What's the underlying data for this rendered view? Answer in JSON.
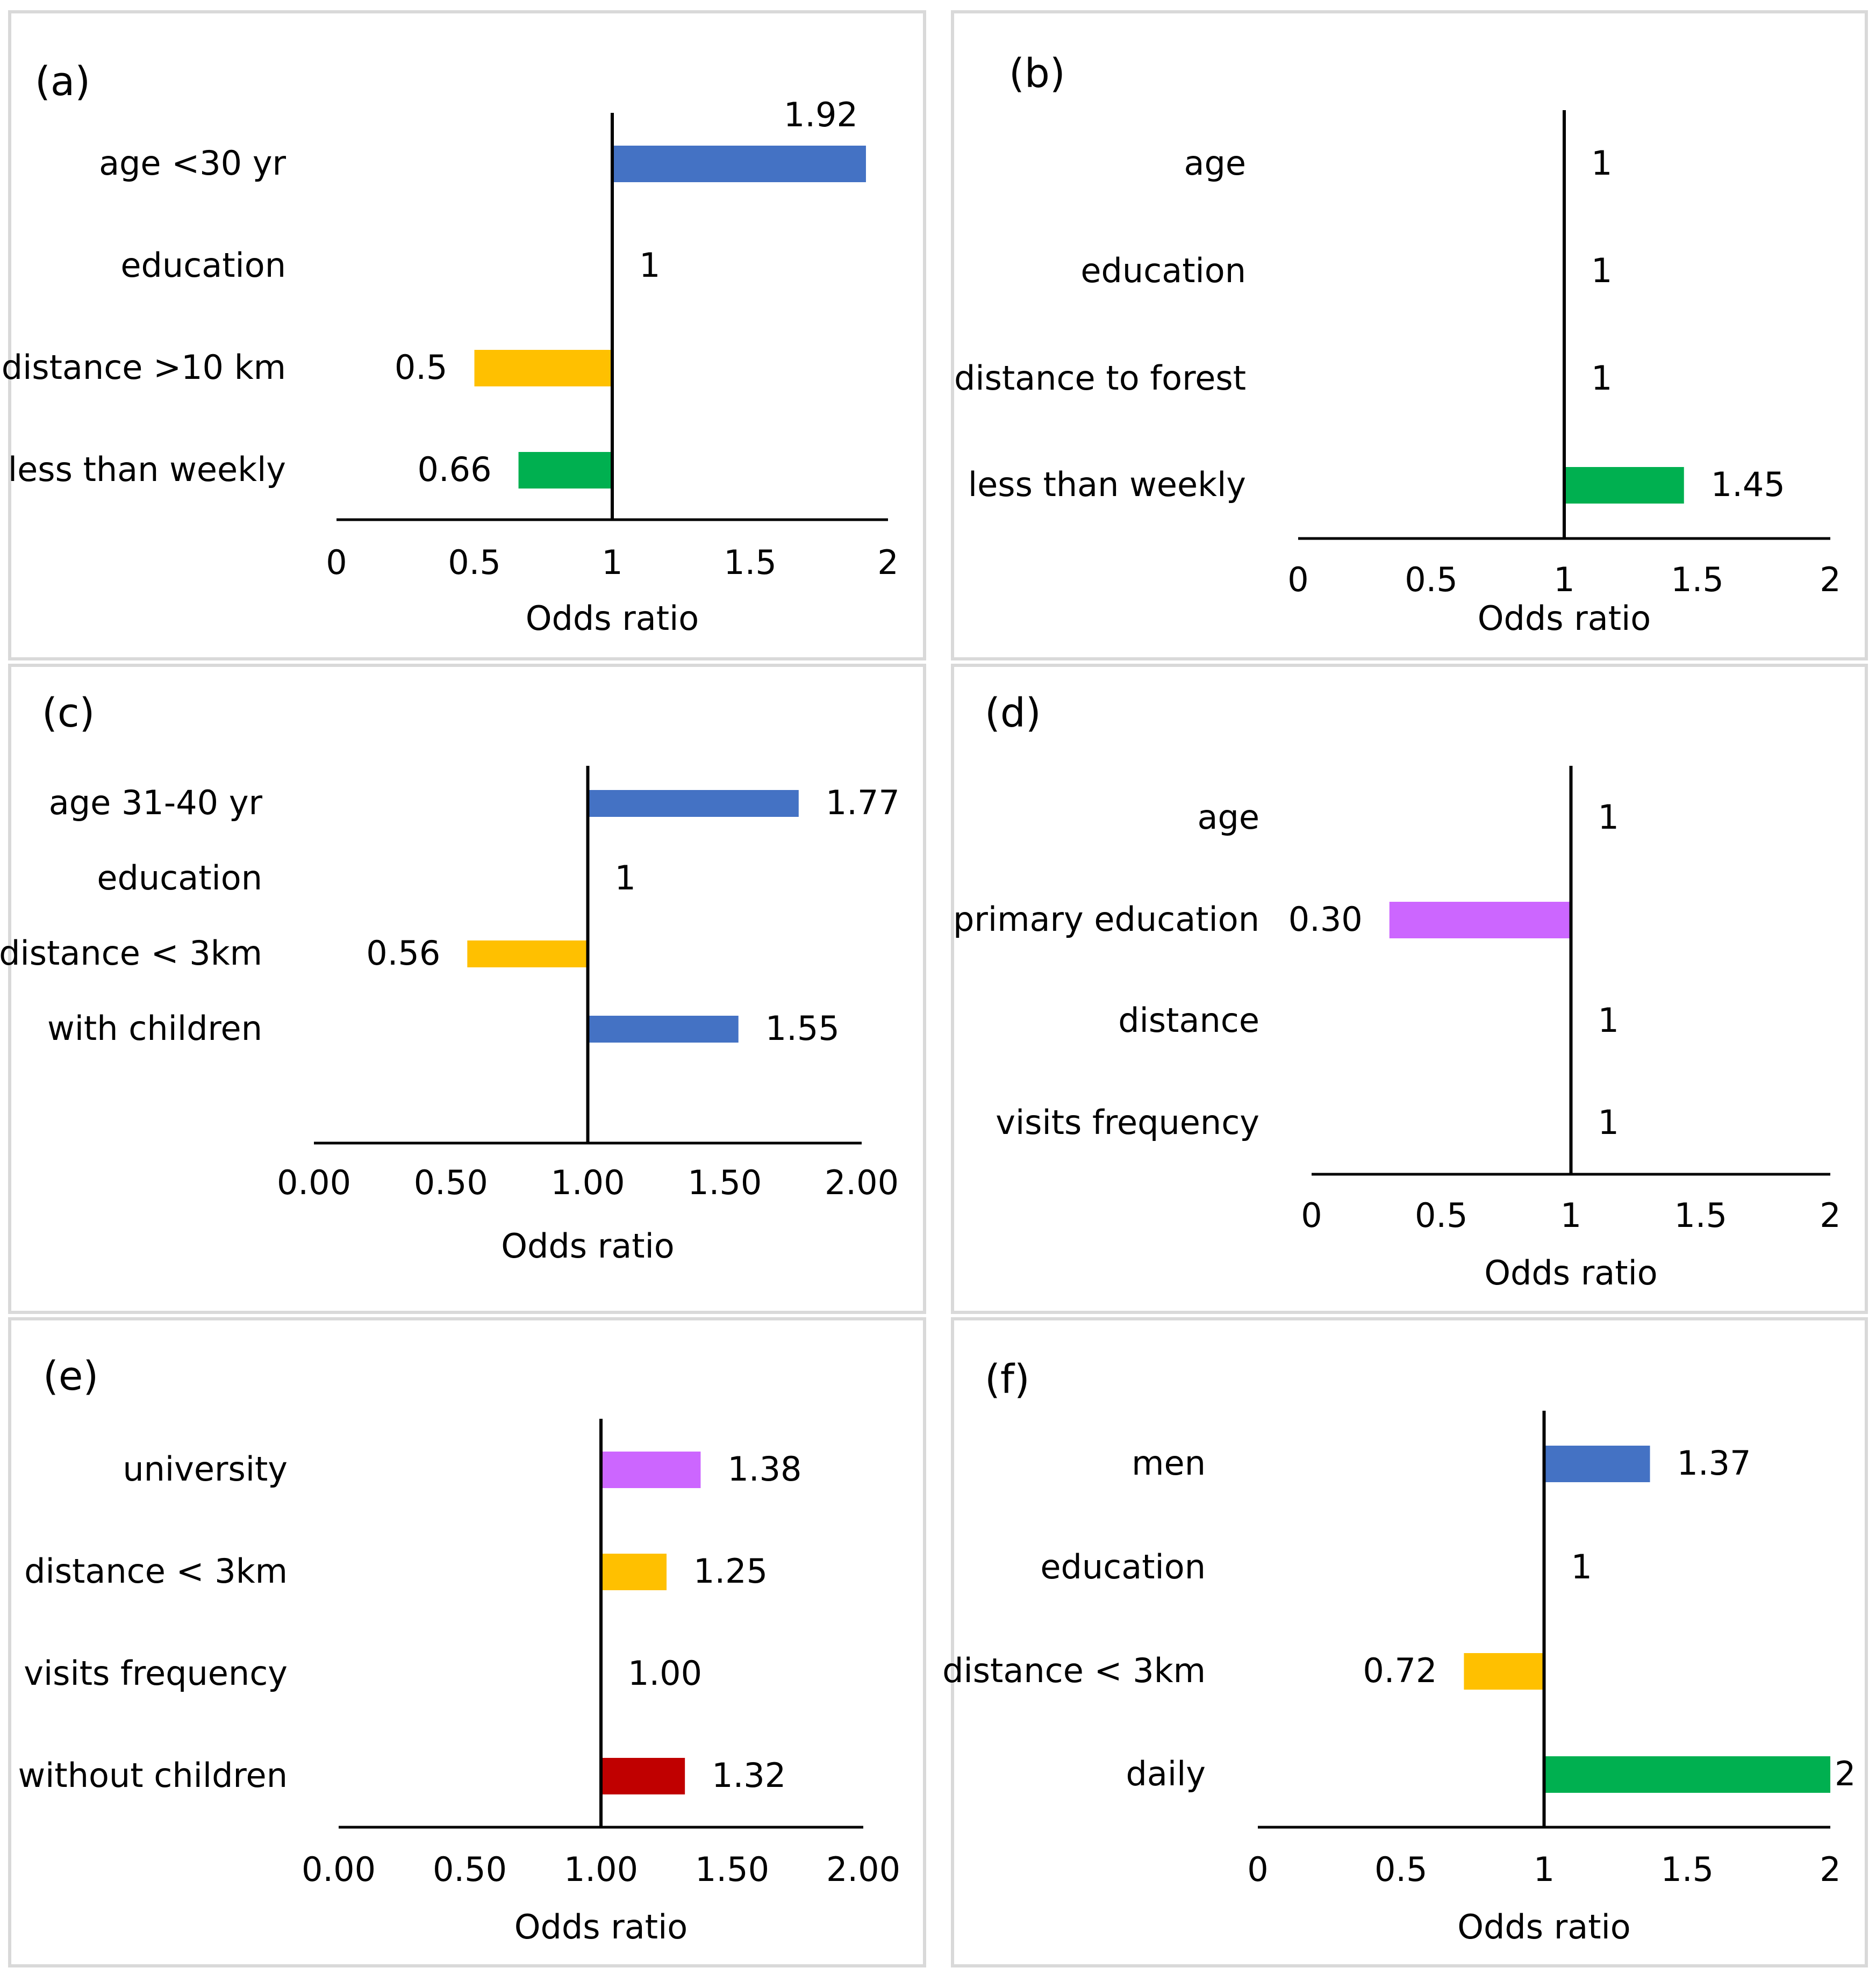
{
  "chart_data": [
    {
      "type": "bar",
      "panel_label": "(a)",
      "categories": [
        "age <30 yr",
        "education",
        "distance >10 km",
        "less than weekly"
      ],
      "values": [
        1.92,
        1,
        0.5,
        0.66
      ],
      "value_labels": [
        "1.92",
        "1",
        "0.5",
        "0.66"
      ],
      "colors": [
        "#4472C4",
        "",
        "#FFC000",
        "#00B050"
      ],
      "baseline": 1,
      "xlim": [
        0,
        2
      ],
      "xticks": [
        "0",
        "0.5",
        "1",
        "1.5",
        "2"
      ],
      "xlabel": "Odds ratio"
    },
    {
      "type": "bar",
      "panel_label": "(b)",
      "categories": [
        "age",
        "education",
        "distance to forest",
        "less than weekly"
      ],
      "values": [
        1,
        1,
        1,
        1.45
      ],
      "value_labels": [
        "1",
        "1",
        "1",
        "1.45"
      ],
      "colors": [
        "",
        "",
        "",
        "#00B050"
      ],
      "baseline": 1,
      "xlim": [
        0,
        2
      ],
      "xticks": [
        "0",
        "0.5",
        "1",
        "1.5",
        "2"
      ],
      "xlabel": "Odds ratio"
    },
    {
      "type": "bar",
      "panel_label": "(c)",
      "categories": [
        "age 31-40 yr",
        "education",
        "distance < 3km",
        "with children"
      ],
      "values": [
        1.77,
        1,
        0.56,
        1.55
      ],
      "value_labels": [
        "1.77",
        "1",
        "0.56",
        "1.55"
      ],
      "colors": [
        "#4472C4",
        "",
        "#FFC000",
        "#4472C4"
      ],
      "baseline": 1,
      "xlim": [
        0,
        2
      ],
      "xticks": [
        "0.00",
        "0.50",
        "1.00",
        "1.50",
        "2.00"
      ],
      "xlabel": "Odds ratio"
    },
    {
      "type": "bar",
      "panel_label": "(d)",
      "categories": [
        "age",
        "primary education",
        "distance",
        "visits frequency"
      ],
      "values": [
        1,
        0.3,
        1,
        1
      ],
      "value_labels": [
        "1",
        "0.30",
        "1",
        "1"
      ],
      "colors": [
        "",
        "#CC66FF",
        "",
        ""
      ],
      "baseline": 1,
      "xlim": [
        0,
        2
      ],
      "xticks": [
        "0",
        "0.5",
        "1",
        "1.5",
        "2"
      ],
      "xlabel": "Odds ratio"
    },
    {
      "type": "bar",
      "panel_label": "(e)",
      "categories": [
        "university",
        "distance < 3km",
        "visits frequency",
        "without children"
      ],
      "values": [
        1.38,
        1.25,
        1,
        1.32
      ],
      "value_labels": [
        "1.38",
        "1.25",
        "1.00",
        "1.32"
      ],
      "colors": [
        "#CC66FF",
        "#FFC000",
        "",
        "#C00000"
      ],
      "baseline": 1,
      "xlim": [
        0,
        2
      ],
      "xticks": [
        "0.00",
        "0.50",
        "1.00",
        "1.50",
        "2.00"
      ],
      "xlabel": "Odds ratio"
    },
    {
      "type": "bar",
      "panel_label": "(f)",
      "categories": [
        "men",
        "education",
        "distance < 3km",
        "daily"
      ],
      "values": [
        1.37,
        1,
        0.72,
        2
      ],
      "value_labels": [
        "1.37",
        "1",
        "0.72",
        "2"
      ],
      "colors": [
        "#4472C4",
        "",
        "#FFC000",
        "#00B050"
      ],
      "baseline": 1,
      "xlim": [
        0,
        2
      ],
      "xticks": [
        "0",
        "0.5",
        "1",
        "1.5",
        "2"
      ],
      "xlabel": "Odds ratio"
    }
  ]
}
